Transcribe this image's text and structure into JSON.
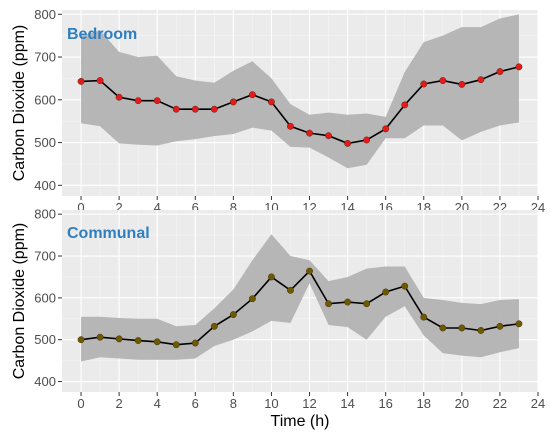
{
  "chart_data": [
    {
      "type": "line",
      "title": "Bedroom",
      "xlabel": "",
      "ylabel": "Carbon Dioxide (ppm)",
      "xlim": [
        -1,
        24
      ],
      "ylim": [
        375,
        810
      ],
      "xticks": [
        0,
        2,
        4,
        6,
        8,
        10,
        12,
        14,
        16,
        18,
        20,
        22,
        24
      ],
      "yticks": [
        400,
        500,
        600,
        700,
        800
      ],
      "x": [
        0,
        1,
        2,
        3,
        4,
        5,
        6,
        7,
        8,
        9,
        10,
        11,
        12,
        13,
        14,
        15,
        16,
        17,
        18,
        19,
        20,
        21,
        22,
        23
      ],
      "series": [
        {
          "values": [
            643,
            645,
            606,
            598,
            598,
            578,
            578,
            578,
            595,
            612,
            595,
            538,
            522,
            516,
            498,
            506,
            532,
            588,
            637,
            645,
            636,
            647,
            666,
            677
          ]
        }
      ],
      "band_upper": [
        750,
        762,
        712,
        700,
        703,
        655,
        645,
        640,
        668,
        690,
        650,
        590,
        565,
        570,
        565,
        568,
        560,
        665,
        735,
        750,
        770,
        770,
        790,
        800
      ],
      "band_lower": [
        545,
        538,
        498,
        495,
        493,
        503,
        508,
        515,
        520,
        535,
        528,
        490,
        488,
        465,
        440,
        448,
        510,
        510,
        540,
        540,
        505,
        525,
        540,
        547
      ],
      "colors": {
        "line": "#000000",
        "point": "#e41a1c",
        "band": "#b3b3b3",
        "title": "#2f7fc0"
      },
      "grid": true
    },
    {
      "type": "line",
      "title": "Communal",
      "xlabel": "Time (h)",
      "ylabel": "Carbon Dioxide (ppm)",
      "xlim": [
        -1,
        24
      ],
      "ylim": [
        375,
        810
      ],
      "xticks": [
        0,
        2,
        4,
        6,
        8,
        10,
        12,
        14,
        16,
        18,
        20,
        22,
        24
      ],
      "yticks": [
        400,
        500,
        600,
        700,
        800
      ],
      "x": [
        0,
        1,
        2,
        3,
        4,
        5,
        6,
        7,
        8,
        9,
        10,
        11,
        12,
        13,
        14,
        15,
        16,
        17,
        18,
        19,
        20,
        21,
        22,
        23
      ],
      "series": [
        {
          "values": [
            500,
            506,
            502,
            498,
            495,
            488,
            492,
            532,
            560,
            598,
            650,
            618,
            664,
            586,
            590,
            586,
            614,
            628,
            554,
            528,
            528,
            522,
            532,
            538
          ]
        }
      ],
      "band_upper": [
        555,
        555,
        552,
        550,
        550,
        532,
        535,
        575,
        620,
        690,
        752,
        700,
        690,
        640,
        650,
        670,
        675,
        675,
        600,
        595,
        588,
        585,
        595,
        597
      ],
      "band_lower": [
        448,
        458,
        455,
        452,
        452,
        452,
        455,
        485,
        500,
        520,
        545,
        540,
        635,
        535,
        530,
        500,
        555,
        580,
        510,
        468,
        462,
        458,
        470,
        480
      ],
      "colors": {
        "line": "#000000",
        "point": "#6b5a00",
        "band": "#b3b3b3",
        "title": "#2f7fc0"
      },
      "grid": true
    }
  ]
}
